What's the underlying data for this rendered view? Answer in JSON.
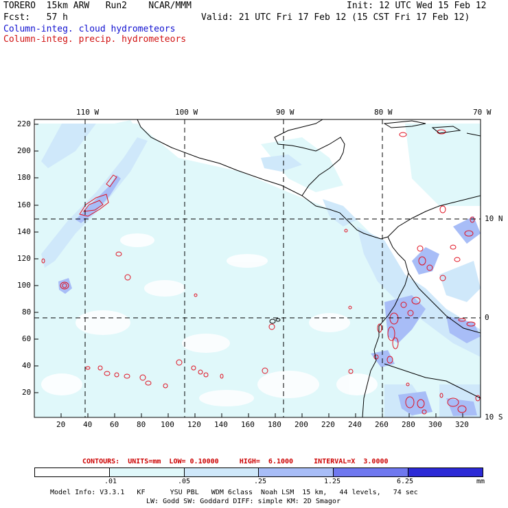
{
  "header": {
    "model": "TORERO  15km ARW   Run2    NCAR/MMM",
    "init": "Init: 12 UTC Wed 15 Feb 12",
    "fcst": "Fcst:   57 h",
    "valid": "Valid: 21 UTC Fri 17 Feb 12 (15 CST Fri 17 Feb 12)",
    "cloud_label": "Column-integ. cloud hydrometeors",
    "precip_label": "Column-integ. precip. hydrometeors"
  },
  "map": {
    "lon_labels": [
      "110 W",
      "100 W",
      "90 W",
      "80 W",
      "70 W"
    ],
    "lat_labels": [
      "10 N",
      "0",
      "10 S"
    ],
    "y_ticks": [
      "220",
      "200",
      "180",
      "160",
      "140",
      "120",
      "100",
      "80",
      "60",
      "40",
      "20"
    ],
    "x_ticks": [
      "20",
      "40",
      "60",
      "80",
      "100",
      "120",
      "140",
      "160",
      "180",
      "200",
      "220",
      "240",
      "260",
      "280",
      "300",
      "320"
    ]
  },
  "contours_info": {
    "text": "CONTOURS:  UNITS=mm  LOW= 0.10000     HIGH=  6.1000     INTERVAL=X  3.0000"
  },
  "colorbar": {
    "labels": [
      ".01",
      ".05",
      ".25",
      "1.25",
      "6.25"
    ],
    "units": "mm",
    "colors": [
      "#ffffff",
      "#e0f8fa",
      "#cfe8fa",
      "#a8bdf7",
      "#6f78ef",
      "#2c2ad6"
    ]
  },
  "footer": {
    "line1": "Model Info: V3.3.1   KF      YSU PBL   WDM 6class  Noah LSM  15 km,   44 levels,   74 sec",
    "line2": "LW: Godd SW: Goddard DIFF: simple KM: 2D Smagor"
  }
}
